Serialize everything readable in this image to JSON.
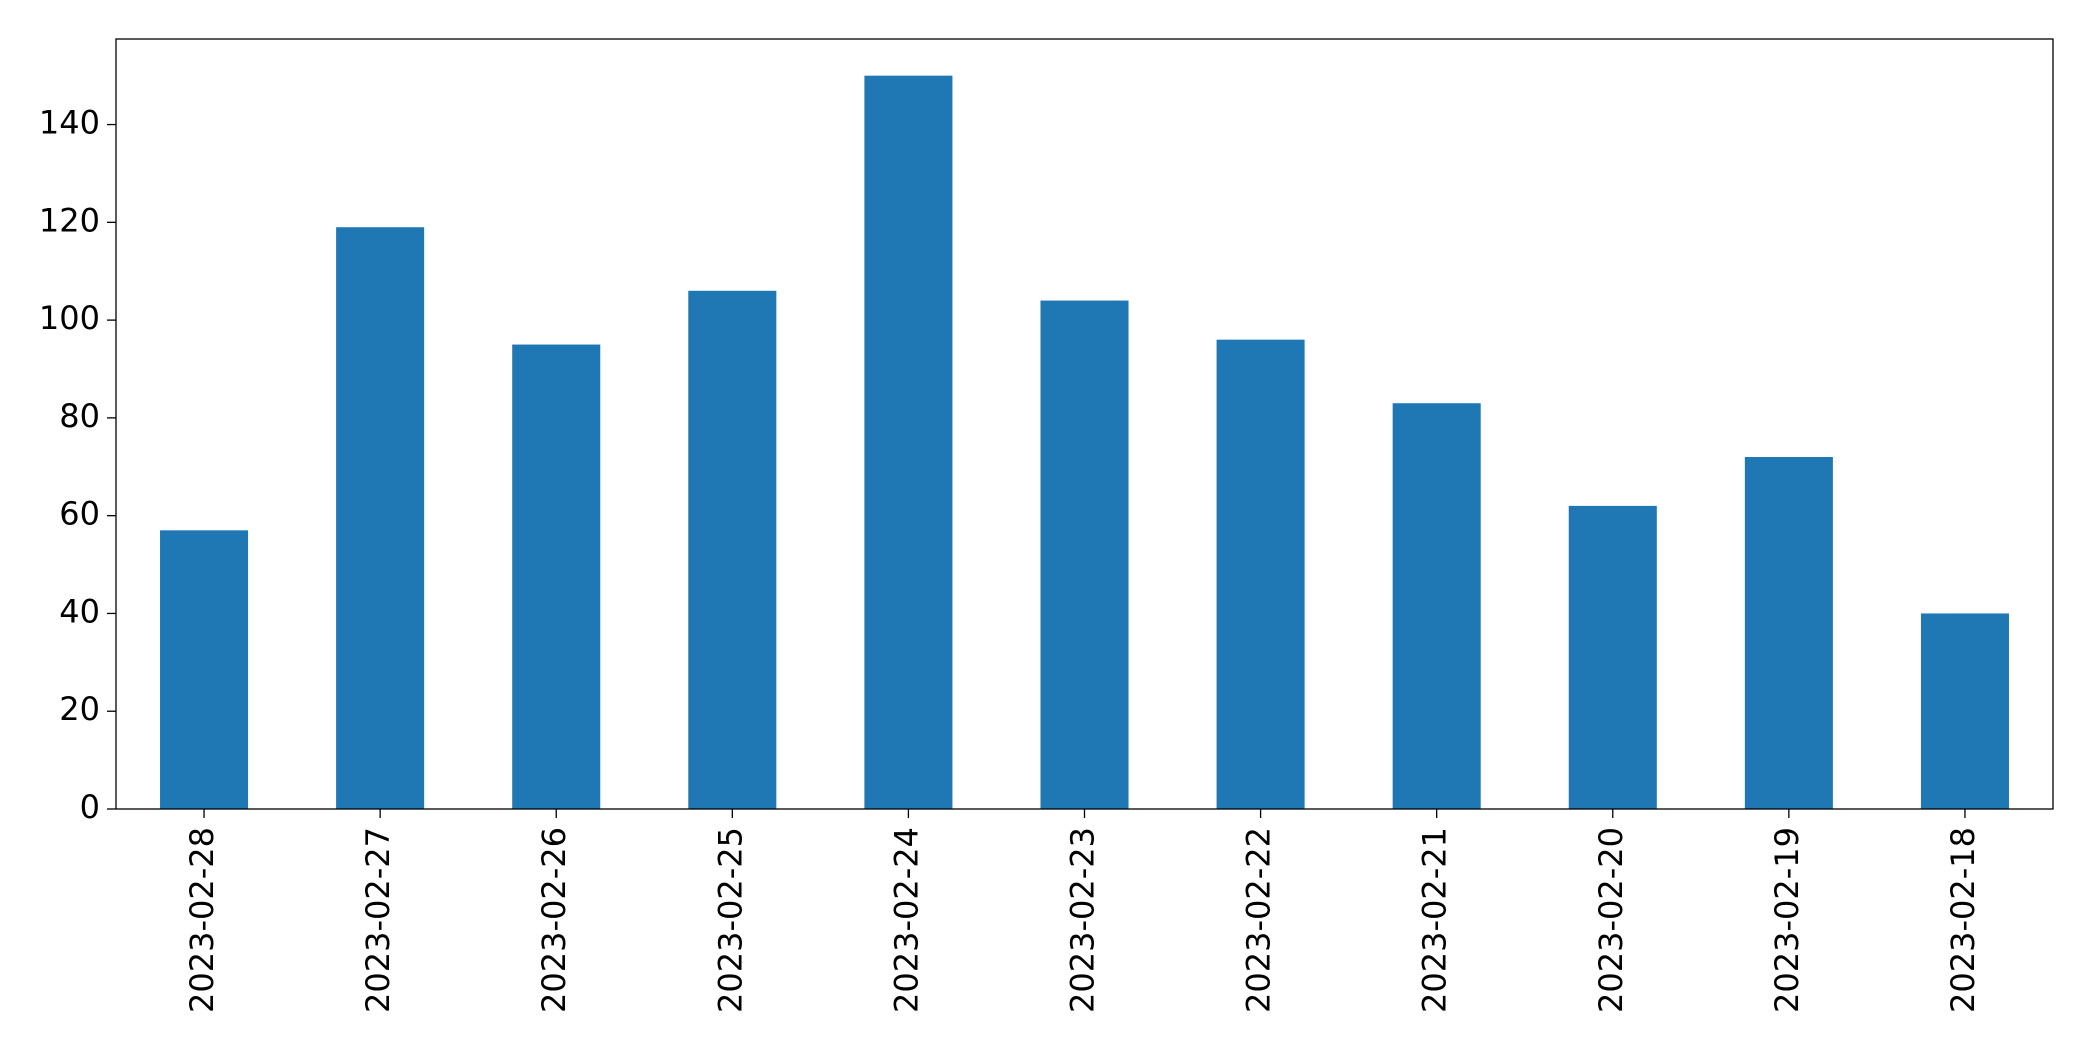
{
  "chart_data": {
    "type": "bar",
    "categories": [
      "2023-02-28",
      "2023-02-27",
      "2023-02-26",
      "2023-02-25",
      "2023-02-24",
      "2023-02-23",
      "2023-02-22",
      "2023-02-21",
      "2023-02-20",
      "2023-02-19",
      "2023-02-18"
    ],
    "values": [
      57,
      119,
      95,
      106,
      150,
      104,
      96,
      83,
      62,
      72,
      40
    ],
    "color": "#1f77b4",
    "ylim": [
      0,
      157.5
    ],
    "yticks": [
      0,
      20,
      40,
      60,
      80,
      100,
      120,
      140
    ],
    "grid": false
  }
}
